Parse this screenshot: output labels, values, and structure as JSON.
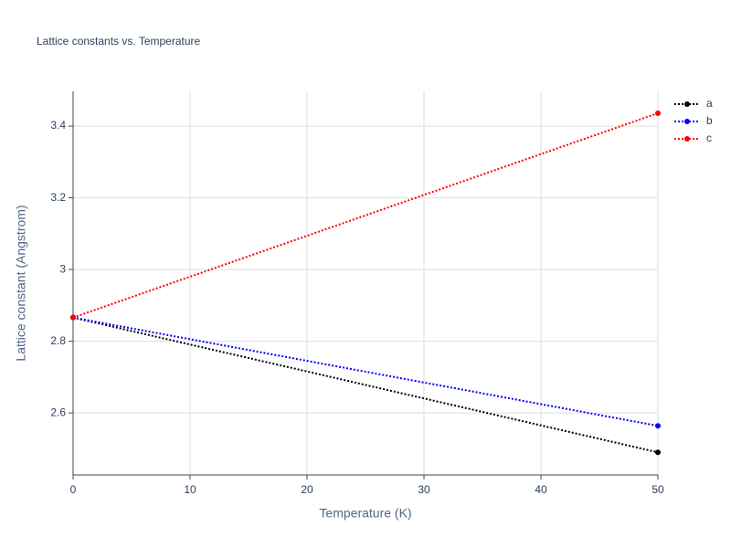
{
  "chart_data": {
    "type": "line",
    "title": "Lattice constants vs. Temperature",
    "x_label": "Temperature (K)",
    "y_label": "Lattice constant (Angstrom)",
    "x": [
      0,
      50
    ],
    "series": [
      {
        "name": "a",
        "color": "#000000",
        "values": [
          2.866,
          2.49
        ]
      },
      {
        "name": "b",
        "color": "#0000ff",
        "values": [
          2.866,
          2.564
        ]
      },
      {
        "name": "c",
        "color": "#ff0000",
        "values": [
          2.866,
          3.436
        ]
      }
    ],
    "xlim": [
      0,
      50
    ],
    "xticks": [
      0,
      10,
      20,
      30,
      40,
      50
    ],
    "ylim": [
      2.427,
      3.497
    ],
    "yticks": [
      2.6,
      2.8,
      3,
      3.2,
      3.4
    ],
    "grid": true,
    "legend": "top-right"
  }
}
